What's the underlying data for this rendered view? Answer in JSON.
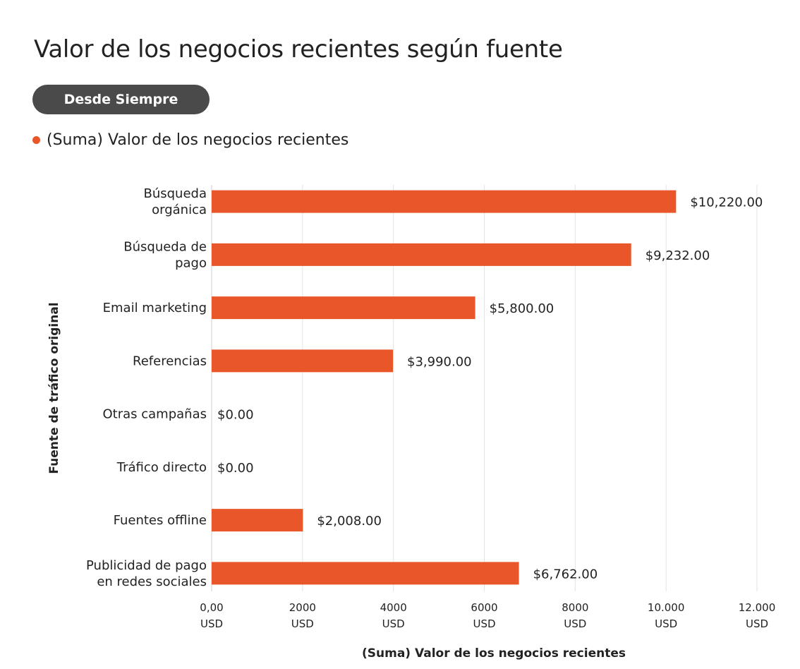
{
  "chart_data": {
    "type": "bar",
    "orientation": "horizontal",
    "title": "Valor de los negocios recientes según fuente",
    "date_range_button": "Desde Siempre",
    "legend": "(Suma) Valor de los negocios recientes",
    "legend_placement": "top-left",
    "categories": [
      [
        "Búsqueda",
        "orgánica"
      ],
      [
        "Búsqueda de",
        "pago"
      ],
      [
        "Email marketing"
      ],
      [
        "Referencias"
      ],
      [
        "Otras campañas"
      ],
      [
        "Tráfico directo"
      ],
      [
        "Fuentes offline"
      ],
      [
        "Publicidad de pago",
        "en redes sociales"
      ]
    ],
    "series": [
      {
        "name": "(Suma) Valor de los negocios recientes",
        "values": [
          10220,
          9232,
          5800,
          3990,
          0,
          0,
          2008,
          6762
        ],
        "data_labels": [
          "$10,220.00",
          "$9,232.00",
          "$5,800.00",
          "$3,990.00",
          "$0.00",
          "$0.00",
          "$2,008.00",
          "$6,762.00"
        ]
      }
    ],
    "xlabel": "(Suma) Valor de los negocios recientes",
    "ylabel": "Fuente de tráfico original",
    "xlim": [
      0,
      12000
    ],
    "xticks": [
      0,
      2000,
      4000,
      6000,
      8000,
      10000,
      12000
    ],
    "xtick_labels": [
      [
        "0,00",
        "USD"
      ],
      [
        "2000",
        "USD"
      ],
      [
        "4000",
        "USD"
      ],
      [
        "6000",
        "USD"
      ],
      [
        "8000",
        "USD"
      ],
      [
        "10.000",
        "USD"
      ],
      [
        "12.000",
        "USD"
      ]
    ],
    "grid": "vertical",
    "colors": {
      "bar": "#e8562a",
      "grid": "#e3e3e3",
      "button": "#4a4a4a"
    }
  }
}
